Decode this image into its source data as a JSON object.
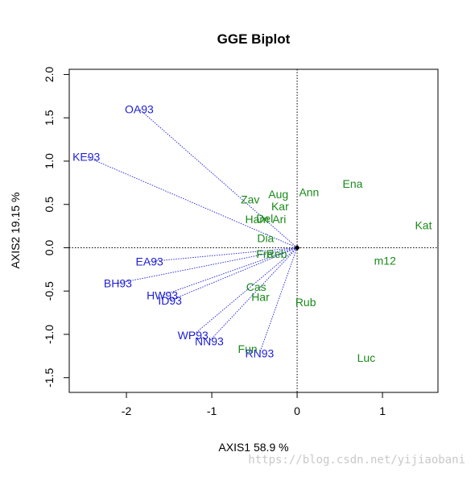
{
  "watermark": "https://blog.csdn.net/yijiaobani",
  "chart_data": {
    "type": "scatter",
    "title": "GGE Biplot",
    "xlabel": "AXIS1 58.9 %",
    "ylabel": "AXIS2 19.15 %",
    "xlim": [
      -2.67,
      1.65
    ],
    "ylim": [
      -1.67,
      2.06
    ],
    "xticks": [
      -2,
      -1,
      0,
      1
    ],
    "xtick_labels": [
      "-2",
      "-1",
      "0",
      "1"
    ],
    "yticks": [
      -1.5,
      -1.0,
      -0.5,
      0.0,
      0.5,
      1.0,
      1.5,
      2.0
    ],
    "ytick_labels": [
      "-1.5",
      "-1.0",
      "-0.5",
      "0.0",
      "0.5",
      "1.0",
      "1.5",
      "2.0"
    ],
    "reference_lines": {
      "x": 0,
      "y": 0,
      "style": "dotted"
    },
    "origin_marker": true,
    "colors": {
      "environment": "#1f1fd6",
      "genotype": "#1a8a1a",
      "axis": "#000000"
    },
    "series": [
      {
        "name": "",
        "role": "environment",
        "vectors_from_origin": true,
        "points": [
          {
            "label": "OA93",
            "x": -1.85,
            "y": 1.6
          },
          {
            "label": "KE93",
            "x": -2.47,
            "y": 1.05
          },
          {
            "label": "EA93",
            "x": -1.73,
            "y": -0.16
          },
          {
            "label": "BH93",
            "x": -2.1,
            "y": -0.41
          },
          {
            "label": "HW93",
            "x": -1.58,
            "y": -0.55
          },
          {
            "label": "ID93",
            "x": -1.49,
            "y": -0.61
          },
          {
            "label": "WP93",
            "x": -1.22,
            "y": -1.01
          },
          {
            "label": "NN93",
            "x": -1.03,
            "y": -1.08
          },
          {
            "label": "RN93",
            "x": -0.44,
            "y": -1.22
          }
        ]
      },
      {
        "name": "",
        "role": "genotype",
        "points": [
          {
            "label": "Kat",
            "x": 1.48,
            "y": 0.26
          },
          {
            "label": "Ena",
            "x": 0.65,
            "y": 0.74
          },
          {
            "label": "Ann",
            "x": 0.14,
            "y": 0.64
          },
          {
            "label": "Aug",
            "x": -0.22,
            "y": 0.62
          },
          {
            "label": "Zav",
            "x": -0.55,
            "y": 0.56
          },
          {
            "label": "Kar",
            "x": -0.2,
            "y": 0.48
          },
          {
            "label": "Del",
            "x": -0.38,
            "y": 0.34
          },
          {
            "label": "Ari",
            "x": -0.21,
            "y": 0.33
          },
          {
            "label": "Ham",
            "x": -0.47,
            "y": 0.33
          },
          {
            "label": "Dia",
            "x": -0.37,
            "y": 0.11
          },
          {
            "label": "Reb",
            "x": -0.24,
            "y": -0.07
          },
          {
            "label": "Fre",
            "x": -0.38,
            "y": -0.07
          },
          {
            "label": "m12",
            "x": 1.03,
            "y": -0.15
          },
          {
            "label": "Cas",
            "x": -0.48,
            "y": -0.45
          },
          {
            "label": "Har",
            "x": -0.43,
            "y": -0.57
          },
          {
            "label": "Rub",
            "x": 0.1,
            "y": -0.63
          },
          {
            "label": "Fun",
            "x": -0.58,
            "y": -1.17
          },
          {
            "label": "Luc",
            "x": 0.81,
            "y": -1.27
          }
        ]
      }
    ]
  }
}
